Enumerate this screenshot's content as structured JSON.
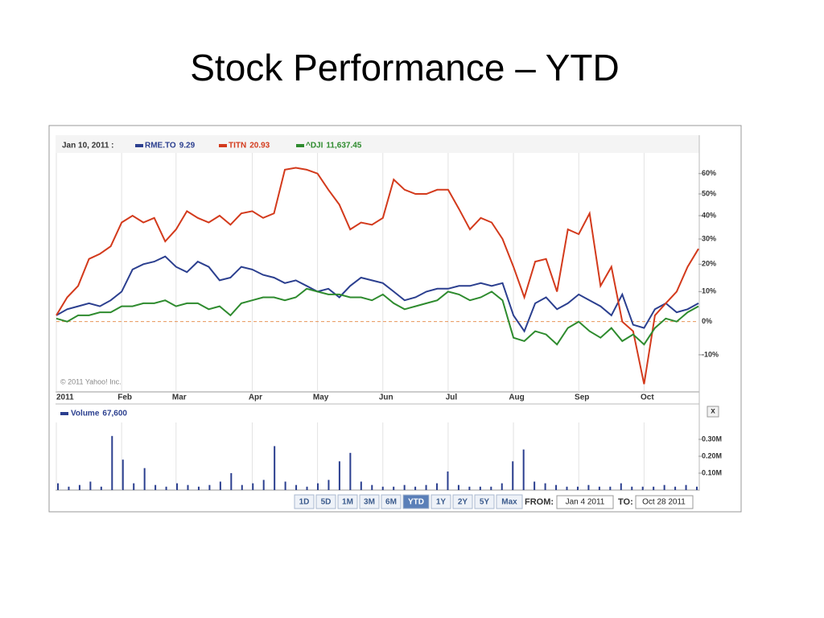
{
  "slide_title": "Stock Performance – YTD",
  "chart_data": [
    {
      "type": "line",
      "header_date": "Jan 10, 2011 :",
      "credit": "© 2011 Yahoo! Inc.",
      "yscale": "log",
      "grid": true,
      "categories": [
        "2011",
        null,
        null,
        null,
        null,
        null,
        "Feb",
        null,
        null,
        null,
        null,
        "Mar",
        null,
        null,
        null,
        null,
        null,
        null,
        "Apr",
        null,
        null,
        null,
        null,
        null,
        "May",
        null,
        null,
        null,
        null,
        null,
        "Jun",
        null,
        null,
        null,
        null,
        null,
        "Jul",
        null,
        null,
        null,
        null,
        null,
        "Aug",
        null,
        null,
        null,
        null,
        null,
        "Sep",
        null,
        null,
        null,
        null,
        null,
        "Oct",
        null,
        null,
        null,
        null,
        null
      ],
      "series": [
        {
          "name": "RME.TO",
          "quote": 9.29,
          "color": "#2b3f8f",
          "values": [
            2,
            4,
            5,
            6,
            5,
            7,
            10,
            18,
            20,
            21,
            23,
            19,
            17,
            21,
            19,
            14,
            15,
            19,
            18,
            16,
            15,
            13,
            14,
            12,
            10,
            11,
            8,
            12,
            15,
            14,
            13,
            10,
            7,
            8,
            10,
            11,
            11,
            12,
            12,
            13,
            12,
            13,
            2,
            -3,
            6,
            8,
            4,
            6,
            9,
            7,
            5,
            2,
            9,
            -1,
            -2,
            4,
            6,
            3,
            4,
            6
          ]
        },
        {
          "name": "TITN",
          "quote": 20.93,
          "color": "#d33a1c",
          "values": [
            2,
            8,
            12,
            22,
            24,
            27,
            37,
            40,
            37,
            39,
            29,
            34,
            42,
            39,
            37,
            40,
            36,
            41,
            42,
            39,
            41,
            62,
            63,
            62,
            60,
            52,
            45,
            34,
            37,
            36,
            39,
            57,
            52,
            50,
            50,
            52,
            52,
            43,
            34,
            39,
            37,
            30,
            19,
            8,
            21,
            22,
            10,
            34,
            32,
            41,
            12,
            19,
            0,
            -3,
            -18,
            2,
            6,
            10,
            19,
            26
          ]
        },
        {
          "name": "^DJI",
          "quote": {
            "value": 11637.45,
            "label": "11,637.45"
          },
          "color": "#2e8b2e",
          "values": [
            1,
            0,
            2,
            2,
            3,
            3,
            5,
            5,
            6,
            6,
            7,
            5,
            6,
            6,
            4,
            5,
            2,
            6,
            7,
            8,
            8,
            7,
            8,
            11,
            10,
            9,
            9,
            8,
            8,
            7,
            9,
            6,
            4,
            5,
            6,
            7,
            10,
            9,
            7,
            8,
            10,
            7,
            -5,
            -6,
            -3,
            -4,
            -7,
            -2,
            0,
            -3,
            -5,
            -2,
            -6,
            -4,
            -7,
            -2,
            1,
            0,
            3,
            5
          ]
        }
      ],
      "ylim": [
        -20,
        70
      ],
      "yticks": [
        {
          "value": -10,
          "label": "-10%"
        },
        {
          "value": 0,
          "label": "0%"
        },
        {
          "value": 10,
          "label": "10%"
        },
        {
          "value": 20,
          "label": "20%"
        },
        {
          "value": 30,
          "label": "30%"
        },
        {
          "value": 40,
          "label": "40%"
        },
        {
          "value": 50,
          "label": "50%"
        },
        {
          "value": 60,
          "label": "60%"
        }
      ]
    },
    {
      "type": "bar",
      "grid": true,
      "series": [
        {
          "name": "Volume",
          "quote": {
            "value": 67600,
            "label": "67,600"
          },
          "color": "#2b3f8f",
          "values": [
            0.04,
            0.02,
            0.03,
            0.05,
            0.02,
            0.32,
            0.18,
            0.04,
            0.13,
            0.03,
            0.02,
            0.04,
            0.03,
            0.02,
            0.03,
            0.05,
            0.1,
            0.03,
            0.04,
            0.06,
            0.26,
            0.05,
            0.03,
            0.02,
            0.04,
            0.06,
            0.17,
            0.22,
            0.05,
            0.03,
            0.02,
            0.02,
            0.03,
            0.02,
            0.03,
            0.04,
            0.11,
            0.03,
            0.02,
            0.02,
            0.02,
            0.04,
            0.17,
            0.24,
            0.05,
            0.04,
            0.03,
            0.02,
            0.02,
            0.03,
            0.02,
            0.02,
            0.04,
            0.02,
            0.02,
            0.02,
            0.03,
            0.02,
            0.03,
            0.02
          ]
        }
      ],
      "ylim": [
        0,
        0.4
      ],
      "yticks": [
        {
          "value": 0.1,
          "label": "0.10M"
        },
        {
          "value": 0.2,
          "label": "0.20M"
        },
        {
          "value": 0.3,
          "label": "0.30M"
        }
      ]
    }
  ],
  "controls": {
    "ranges": [
      "1D",
      "5D",
      "1M",
      "3M",
      "6M",
      "YTD",
      "1Y",
      "2Y",
      "5Y",
      "Max"
    ],
    "selected": 5,
    "from_label": "FROM:",
    "from": "Jan 4 2011",
    "to_label": "TO:",
    "to": "Oct 28 2011",
    "close": "x"
  }
}
